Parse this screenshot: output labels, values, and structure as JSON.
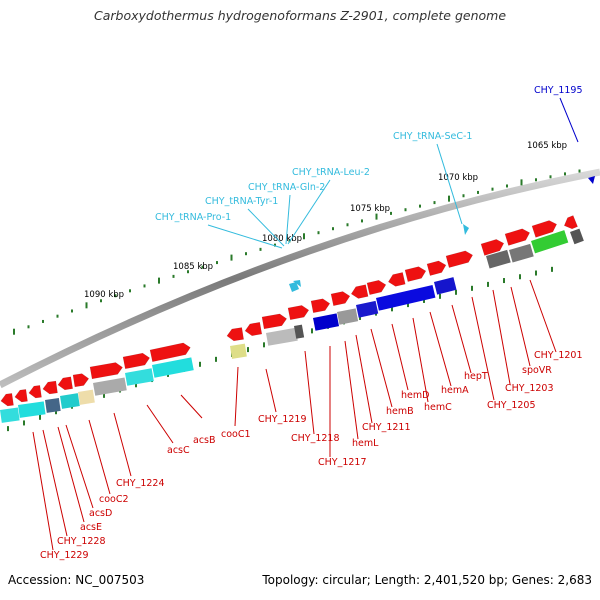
{
  "title": "Carboxydothermus hydrogenoformans Z-2901, complete genome",
  "accession": "Accession: NC_007503",
  "topology": "Topology: circular; Length: 2,401,520 bp; Genes: 2,683",
  "scale_labels": [
    "1065 kbp",
    "1070 kbp",
    "1075 kbp",
    "1080 kbp",
    "1085 kbp",
    "1090 kbp"
  ],
  "trna_labels": [
    "CHY_tRNA-SeC-1",
    "CHY_tRNA-Leu-2",
    "CHY_tRNA-Gln-2",
    "CHY_tRNA-Tyr-1",
    "CHY_tRNA-Pro-1"
  ],
  "gene_labels": [
    "CHY_1195",
    "CHY_1201",
    "spoVR",
    "CHY_1203",
    "CHY_1205",
    "hepT",
    "hemA",
    "hemC",
    "hemD",
    "hemB",
    "CHY_1211",
    "hemL",
    "CHY_1217",
    "CHY_1218",
    "CHY_1219",
    "cooC1",
    "acsB",
    "acsC",
    "CHY_1224",
    "cooC2",
    "acsD",
    "acsE",
    "CHY_1228",
    "CHY_1229"
  ],
  "colors": {
    "gene_label": "#cc0000",
    "trna_label": "#33bbdd",
    "highlight_label": "#0000cc",
    "backbone": "#888888",
    "tick": "#2a7a2a"
  }
}
